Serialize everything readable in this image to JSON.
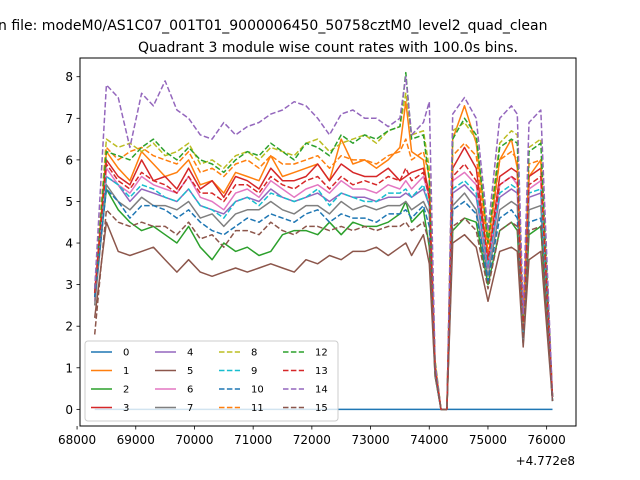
{
  "chart_data": {
    "type": "line",
    "suptitle": "n file: modeM0/AS1C07_001T01_9000006450_50758cztM0_level2_quad_clean",
    "title": "Quadrant 3 module wise count rates with 100.0s bins.",
    "xlabel": "",
    "ylabel": "",
    "x_offset_label": "+4.772e8",
    "xlim": [
      68050,
      76500
    ],
    "ylim": [
      -0.4,
      8.45
    ],
    "x_ticks": [
      68000,
      69000,
      70000,
      71000,
      72000,
      73000,
      74000,
      75000,
      76000
    ],
    "x_tick_labels": [
      "68000",
      "69000",
      "70000",
      "71000",
      "72000",
      "73000",
      "74000",
      "75000",
      "76000"
    ],
    "y_ticks": [
      0,
      1,
      2,
      3,
      4,
      5,
      6,
      7,
      8
    ],
    "y_tick_labels": [
      "0",
      "1",
      "2",
      "3",
      "4",
      "5",
      "6",
      "7",
      "8"
    ],
    "grid": false,
    "legend_placement": "lower-left",
    "legend_columns": 4,
    "x": [
      68300,
      68500,
      68700,
      68900,
      69100,
      69300,
      69500,
      69700,
      69900,
      70100,
      70300,
      70500,
      70700,
      70900,
      71100,
      71300,
      71500,
      71700,
      71900,
      72100,
      72300,
      72500,
      72700,
      72900,
      73100,
      73300,
      73500,
      73600,
      73700,
      73900,
      74000,
      74100,
      74200,
      74300,
      74400,
      74600,
      74800,
      75000,
      75200,
      75400,
      75500,
      75600,
      75700,
      75900,
      76100
    ],
    "series": [
      {
        "name": "0",
        "color": "#1f77b4",
        "dashed": false,
        "values": [
          0,
          0,
          0,
          0,
          0,
          0,
          0,
          0,
          0,
          0,
          0,
          0,
          0,
          0,
          0,
          0,
          0,
          0,
          0,
          0,
          0,
          0,
          0,
          0,
          0,
          0,
          0,
          0,
          0,
          0,
          0,
          0,
          0,
          0,
          0,
          0,
          0,
          0,
          0,
          0,
          0,
          0,
          0,
          0,
          0
        ]
      },
      {
        "name": "1",
        "color": "#ff7f0e",
        "dashed": false,
        "values": [
          2.8,
          6.2,
          5.8,
          5.5,
          6.2,
          5.9,
          5.6,
          5.7,
          6.0,
          5.4,
          5.5,
          5.2,
          5.7,
          5.6,
          5.5,
          6.1,
          5.6,
          5.7,
          5.8,
          5.9,
          5.5,
          6.5,
          5.9,
          6.0,
          5.8,
          6.0,
          6.3,
          7.4,
          6.2,
          6.0,
          5.0,
          1.0,
          0,
          0,
          6.5,
          7.3,
          6.4,
          4.0,
          6.0,
          6.5,
          5.8,
          2.0,
          5.6,
          6.0,
          0.3
        ]
      },
      {
        "name": "2",
        "color": "#2ca02c",
        "dashed": false,
        "values": [
          2.8,
          5.3,
          4.8,
          4.5,
          4.3,
          4.4,
          4.2,
          4.0,
          4.4,
          3.9,
          3.6,
          4.0,
          3.8,
          3.9,
          3.7,
          3.8,
          4.2,
          4.3,
          4.3,
          4.2,
          4.5,
          4.2,
          4.5,
          4.4,
          4.4,
          4.5,
          4.7,
          5.0,
          4.5,
          4.8,
          3.9,
          0.8,
          0,
          0,
          4.3,
          4.6,
          4.5,
          3.0,
          4.3,
          4.5,
          4.3,
          1.6,
          4.2,
          4.4,
          0.2
        ]
      },
      {
        "name": "3",
        "color": "#d62728",
        "dashed": false,
        "values": [
          2.7,
          6.0,
          5.6,
          5.4,
          6.0,
          5.5,
          5.6,
          5.3,
          5.8,
          5.3,
          5.5,
          5.1,
          5.6,
          5.5,
          5.3,
          5.8,
          5.5,
          5.5,
          5.6,
          5.9,
          5.5,
          5.9,
          5.7,
          5.6,
          5.6,
          5.8,
          5.5,
          5.6,
          5.7,
          5.8,
          5.2,
          1.0,
          0,
          0,
          5.8,
          6.3,
          5.8,
          3.6,
          5.6,
          5.8,
          5.7,
          2.0,
          5.6,
          5.8,
          0.3
        ]
      },
      {
        "name": "4",
        "color": "#9467bd",
        "dashed": false,
        "values": [
          2.6,
          5.6,
          5.4,
          5.0,
          5.3,
          5.2,
          5.1,
          5.0,
          5.3,
          4.9,
          4.8,
          4.7,
          5.0,
          5.1,
          5.0,
          5.3,
          5.1,
          5.0,
          5.1,
          5.2,
          5.0,
          5.2,
          5.1,
          5.1,
          5.0,
          5.1,
          5.1,
          5.2,
          5.1,
          5.3,
          4.9,
          0.9,
          0,
          0,
          5.2,
          5.4,
          5.1,
          3.4,
          5.1,
          5.3,
          5.2,
          1.8,
          5.1,
          5.2,
          0.3
        ]
      },
      {
        "name": "5",
        "color": "#8c564b",
        "dashed": false,
        "values": [
          2.2,
          4.5,
          3.8,
          3.7,
          3.8,
          3.9,
          3.6,
          3.3,
          3.6,
          3.3,
          3.2,
          3.3,
          3.4,
          3.3,
          3.4,
          3.5,
          3.4,
          3.3,
          3.6,
          3.5,
          3.7,
          3.6,
          3.8,
          3.8,
          3.9,
          3.7,
          3.9,
          4.0,
          3.7,
          4.2,
          3.5,
          0.8,
          0,
          0,
          4.0,
          4.2,
          3.9,
          2.6,
          3.8,
          3.9,
          3.8,
          1.5,
          3.6,
          3.8,
          0.2
        ]
      },
      {
        "name": "6",
        "color": "#e377c2",
        "dashed": false,
        "values": [
          2.6,
          5.8,
          5.4,
          5.2,
          5.6,
          5.4,
          5.3,
          5.2,
          5.6,
          5.1,
          5.0,
          4.8,
          5.2,
          5.3,
          5.1,
          5.5,
          5.3,
          5.1,
          5.3,
          5.4,
          5.2,
          5.5,
          5.3,
          5.3,
          5.2,
          5.4,
          5.3,
          5.5,
          5.3,
          5.6,
          5.1,
          0.9,
          0,
          0,
          5.5,
          5.7,
          5.4,
          3.5,
          5.4,
          5.6,
          5.4,
          1.9,
          5.3,
          5.5,
          0.3
        ]
      },
      {
        "name": "7",
        "color": "#7f7f7f",
        "dashed": false,
        "values": [
          2.5,
          5.4,
          5.0,
          4.8,
          5.1,
          4.9,
          4.9,
          4.8,
          5.0,
          4.6,
          4.7,
          4.4,
          4.7,
          4.8,
          4.8,
          5.0,
          4.8,
          4.7,
          4.9,
          4.9,
          4.7,
          5.0,
          4.8,
          4.9,
          4.8,
          4.9,
          4.9,
          5.0,
          4.8,
          5.0,
          4.7,
          0.9,
          0,
          0,
          4.9,
          5.2,
          4.8,
          3.2,
          4.8,
          5.0,
          4.9,
          1.7,
          4.8,
          4.9,
          0.3
        ]
      },
      {
        "name": "8",
        "color": "#bcbd22",
        "dashed": true,
        "values": [
          2.9,
          6.5,
          6.3,
          6.4,
          6.2,
          6.4,
          6.1,
          6.2,
          6.4,
          5.9,
          6.0,
          5.8,
          6.1,
          6.2,
          6.0,
          6.3,
          6.2,
          6.1,
          6.4,
          6.5,
          6.2,
          6.4,
          6.5,
          6.6,
          6.4,
          6.7,
          6.8,
          7.6,
          6.6,
          6.7,
          5.8,
          1.2,
          0,
          0,
          6.7,
          6.9,
          6.5,
          4.2,
          6.4,
          6.7,
          6.6,
          2.2,
          6.3,
          6.5,
          0.3
        ]
      },
      {
        "name": "9",
        "color": "#17becf",
        "dashed": true,
        "values": [
          2.8,
          5.6,
          5.4,
          5.1,
          5.4,
          5.3,
          5.1,
          5.0,
          5.3,
          4.9,
          4.8,
          4.6,
          5.0,
          5.1,
          4.9,
          5.2,
          5.1,
          5.0,
          5.1,
          5.3,
          4.9,
          5.2,
          5.1,
          5.0,
          5.0,
          5.2,
          5.2,
          5.3,
          5.1,
          5.4,
          4.9,
          0.9,
          0,
          0,
          5.3,
          5.5,
          5.2,
          3.5,
          5.2,
          5.4,
          5.3,
          1.8,
          5.2,
          5.3,
          0.3
        ]
      },
      {
        "name": "10",
        "color": "#1f77b4",
        "dashed": true,
        "values": [
          2.7,
          5.3,
          5.0,
          4.6,
          4.9,
          4.9,
          4.8,
          4.6,
          4.8,
          4.5,
          4.3,
          4.2,
          4.4,
          4.6,
          4.5,
          4.7,
          4.6,
          4.5,
          4.7,
          4.8,
          4.5,
          4.7,
          4.6,
          4.6,
          4.5,
          4.7,
          4.7,
          4.8,
          4.6,
          4.9,
          4.4,
          0.9,
          0,
          0,
          4.8,
          5.0,
          4.7,
          3.1,
          4.6,
          4.8,
          4.6,
          1.6,
          4.5,
          4.6,
          0.2
        ]
      },
      {
        "name": "11",
        "color": "#ff7f0e",
        "dashed": true,
        "values": [
          2.9,
          6.3,
          6.0,
          6.2,
          6.3,
          6.1,
          6.0,
          5.9,
          6.2,
          5.7,
          5.8,
          5.6,
          5.9,
          6.0,
          5.8,
          6.1,
          5.9,
          5.9,
          6.0,
          6.1,
          5.8,
          6.1,
          6.0,
          6.0,
          5.9,
          6.1,
          6.2,
          6.5,
          6.0,
          6.2,
          5.6,
          1.1,
          0,
          0,
          6.1,
          6.4,
          6.1,
          3.8,
          6.0,
          6.2,
          6.0,
          2.1,
          5.9,
          6.0,
          0.3
        ]
      },
      {
        "name": "12",
        "color": "#2ca02c",
        "dashed": true,
        "values": [
          2.9,
          6.2,
          6.1,
          6.0,
          6.3,
          6.5,
          6.2,
          6.0,
          6.3,
          6.0,
          5.9,
          5.7,
          6.0,
          6.2,
          6.1,
          6.4,
          6.2,
          6.0,
          6.4,
          6.3,
          6.1,
          6.6,
          6.4,
          6.6,
          6.5,
          6.7,
          6.8,
          8.1,
          6.5,
          6.6,
          5.5,
          1.1,
          0,
          0,
          6.5,
          7.0,
          6.6,
          4.0,
          6.3,
          6.5,
          6.4,
          2.1,
          6.2,
          6.4,
          0.3
        ]
      },
      {
        "name": "13",
        "color": "#d62728",
        "dashed": true,
        "values": [
          2.8,
          5.9,
          5.5,
          5.3,
          5.7,
          5.5,
          5.4,
          5.2,
          5.6,
          5.2,
          5.2,
          5.0,
          5.4,
          5.4,
          5.2,
          5.6,
          5.4,
          5.3,
          5.5,
          5.6,
          5.3,
          5.6,
          5.4,
          5.5,
          5.4,
          5.6,
          5.5,
          5.8,
          5.5,
          5.7,
          5.1,
          1.0,
          0,
          0,
          5.6,
          5.9,
          5.5,
          3.6,
          5.4,
          5.6,
          5.5,
          1.9,
          5.4,
          5.6,
          0.3
        ]
      },
      {
        "name": "14",
        "color": "#9467bd",
        "dashed": true,
        "values": [
          2.9,
          7.8,
          7.5,
          6.3,
          7.6,
          7.3,
          7.9,
          7.2,
          7.0,
          6.6,
          6.5,
          6.9,
          6.6,
          6.8,
          6.9,
          7.1,
          7.2,
          7.4,
          7.3,
          7.0,
          6.6,
          7.1,
          7.2,
          7.0,
          7.0,
          6.8,
          7.0,
          8.0,
          6.6,
          6.9,
          7.4,
          1.1,
          0,
          0,
          7.1,
          7.5,
          7.0,
          4.3,
          7.0,
          7.3,
          7.1,
          2.3,
          6.9,
          7.2,
          0.3
        ]
      },
      {
        "name": "15",
        "color": "#8c564b",
        "dashed": true,
        "values": [
          1.8,
          4.8,
          4.5,
          4.4,
          4.5,
          4.4,
          4.4,
          4.2,
          4.5,
          4.1,
          4.2,
          3.9,
          4.3,
          4.3,
          4.2,
          4.5,
          4.3,
          4.2,
          4.4,
          4.4,
          4.3,
          4.4,
          4.3,
          4.4,
          4.3,
          4.4,
          4.4,
          4.5,
          4.3,
          4.5,
          4.0,
          0.9,
          0,
          0,
          4.4,
          4.6,
          4.3,
          2.9,
          4.3,
          4.5,
          4.4,
          1.6,
          4.3,
          4.4,
          0.2
        ]
      }
    ]
  }
}
